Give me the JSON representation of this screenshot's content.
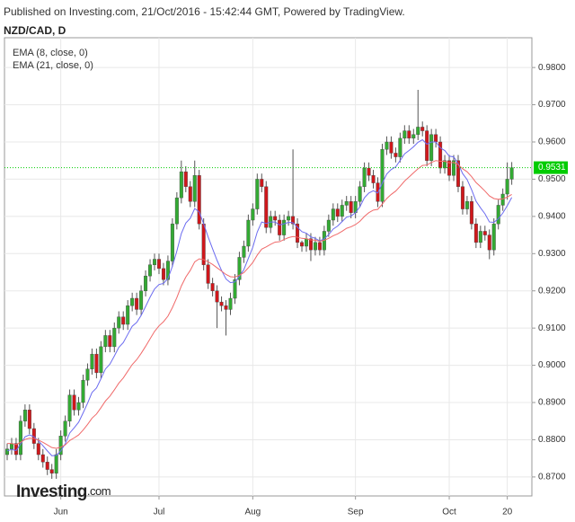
{
  "header": {
    "published": "Published on Investing.com, 21/Oct/2016 - 15:42:44 GMT, Powered by TradingView.",
    "logo": "Investing",
    "logo_suffix": ".com"
  },
  "chart_data": {
    "type": "candlestick",
    "title": "NZD/CAD, D",
    "categories": [
      null,
      null,
      null,
      null,
      null,
      null,
      null,
      null,
      null,
      null,
      null,
      null,
      "Jun",
      null,
      null,
      null,
      null,
      null,
      null,
      null,
      null,
      null,
      null,
      null,
      null,
      null,
      null,
      null,
      null,
      null,
      null,
      null,
      null,
      null,
      "Jul",
      null,
      null,
      null,
      null,
      null,
      null,
      null,
      null,
      null,
      null,
      null,
      null,
      null,
      null,
      null,
      null,
      null,
      null,
      null,
      null,
      "Aug",
      null,
      null,
      null,
      null,
      null,
      null,
      null,
      null,
      null,
      null,
      null,
      null,
      null,
      null,
      null,
      null,
      null,
      null,
      null,
      null,
      null,
      null,
      "Sep",
      null,
      null,
      null,
      null,
      null,
      null,
      null,
      null,
      null,
      null,
      null,
      null,
      null,
      null,
      null,
      null,
      null,
      null,
      null,
      null,
      "Oct",
      null,
      null,
      null,
      null,
      null,
      null,
      null,
      null,
      null,
      null,
      null,
      null,
      "20",
      null
    ],
    "ohlc": {
      "up_color": "#33aa33",
      "down_color": "#d0171b",
      "open": [
        0.876,
        0.8775,
        0.879,
        0.876,
        0.885,
        0.888,
        0.883,
        0.879,
        0.876,
        0.874,
        0.872,
        0.871,
        0.876,
        0.881,
        0.885,
        0.892,
        0.888,
        0.89,
        0.896,
        0.899,
        0.903,
        0.898,
        0.905,
        0.908,
        0.905,
        0.91,
        0.913,
        0.911,
        0.916,
        0.918,
        0.915,
        0.92,
        0.924,
        0.927,
        0.9285,
        0.926,
        0.923,
        0.928,
        0.938,
        0.945,
        0.952,
        0.948,
        0.944,
        0.951,
        0.938,
        0.927,
        0.922,
        0.92,
        0.917,
        0.916,
        0.915,
        0.918,
        0.923,
        0.929,
        0.932,
        0.939,
        0.942,
        0.95,
        0.948,
        0.937,
        0.94,
        0.939,
        0.935,
        0.939,
        0.94,
        0.938,
        0.933,
        0.932,
        0.934,
        0.931,
        0.933,
        0.931,
        0.936,
        0.939,
        0.942,
        0.94,
        0.943,
        0.944,
        0.941,
        0.944,
        0.948,
        0.953,
        0.951,
        0.949,
        0.944,
        0.958,
        0.96,
        0.957,
        0.956,
        0.961,
        0.963,
        0.961,
        0.962,
        0.964,
        0.963,
        0.955,
        0.962,
        0.96,
        0.953,
        0.955,
        0.951,
        0.955,
        0.948,
        0.942,
        0.944,
        0.938,
        0.933,
        0.936,
        0.935,
        0.931,
        0.938,
        0.943,
        0.946,
        0.95
      ],
      "high": [
        0.879,
        0.8805,
        0.8805,
        0.8865,
        0.8895,
        0.8895,
        0.8845,
        0.8805,
        0.8775,
        0.8755,
        0.8735,
        0.8775,
        0.8825,
        0.8865,
        0.8935,
        0.8935,
        0.8915,
        0.8975,
        0.9005,
        0.9045,
        0.9045,
        0.9065,
        0.9095,
        0.9095,
        0.9115,
        0.9145,
        0.9145,
        0.9175,
        0.9195,
        0.9195,
        0.9215,
        0.9255,
        0.9285,
        0.93,
        0.93,
        0.9275,
        0.9295,
        0.9395,
        0.9465,
        0.955,
        0.9535,
        0.9495,
        0.955,
        0.9525,
        0.9395,
        0.9285,
        0.9235,
        0.9215,
        0.9185,
        0.9175,
        0.9195,
        0.9245,
        0.9305,
        0.9335,
        0.9405,
        0.9435,
        0.9515,
        0.9515,
        0.9495,
        0.9415,
        0.9415,
        0.9405,
        0.9405,
        0.9415,
        0.958,
        0.9395,
        0.9335,
        0.9355,
        0.9355,
        0.9345,
        0.9345,
        0.9375,
        0.9405,
        0.9435,
        0.9435,
        0.9445,
        0.9455,
        0.9455,
        0.9455,
        0.9495,
        0.9545,
        0.9545,
        0.9525,
        0.9505,
        0.9595,
        0.9615,
        0.9615,
        0.9585,
        0.9625,
        0.9645,
        0.9645,
        0.9635,
        0.974,
        0.9655,
        0.9645,
        0.9635,
        0.9635,
        0.9615,
        0.9565,
        0.9565,
        0.9565,
        0.9565,
        0.9495,
        0.9455,
        0.9455,
        0.9395,
        0.9375,
        0.9375,
        0.9365,
        0.9395,
        0.9445,
        0.9475,
        0.9545,
        0.9546
      ],
      "low": [
        0.8745,
        0.876,
        0.8745,
        0.8745,
        0.8835,
        0.8815,
        0.8775,
        0.8745,
        0.8725,
        0.8705,
        0.8695,
        0.8695,
        0.8745,
        0.8795,
        0.8835,
        0.8865,
        0.8865,
        0.8885,
        0.8945,
        0.8975,
        0.8965,
        0.8965,
        0.9035,
        0.9035,
        0.9035,
        0.9085,
        0.9095,
        0.9095,
        0.9145,
        0.9135,
        0.9135,
        0.9185,
        0.9225,
        0.9255,
        0.9245,
        0.9215,
        0.9215,
        0.9265,
        0.9365,
        0.9435,
        0.9465,
        0.9425,
        0.9425,
        0.9365,
        0.9255,
        0.9205,
        0.9185,
        0.91,
        0.9145,
        0.908,
        0.9135,
        0.9165,
        0.9215,
        0.9275,
        0.9305,
        0.9375,
        0.9405,
        0.9465,
        0.9355,
        0.9355,
        0.9375,
        0.9335,
        0.9335,
        0.9375,
        0.9365,
        0.9315,
        0.9305,
        0.9305,
        0.928,
        0.9295,
        0.9295,
        0.9295,
        0.9345,
        0.9375,
        0.9385,
        0.9385,
        0.9415,
        0.9395,
        0.9395,
        0.9425,
        0.9465,
        0.9495,
        0.9475,
        0.9425,
        0.9425,
        0.9565,
        0.9555,
        0.9545,
        0.9545,
        0.9595,
        0.9595,
        0.9595,
        0.9605,
        0.9615,
        0.9535,
        0.9535,
        0.9585,
        0.9515,
        0.9515,
        0.9495,
        0.9495,
        0.9465,
        0.9405,
        0.9405,
        0.9365,
        0.9315,
        0.9315,
        0.9335,
        0.9285,
        0.9295,
        0.9365,
        0.9415,
        0.9445,
        0.9485
      ],
      "close": [
        0.8775,
        0.879,
        0.876,
        0.885,
        0.888,
        0.883,
        0.879,
        0.876,
        0.874,
        0.872,
        0.871,
        0.876,
        0.881,
        0.885,
        0.892,
        0.888,
        0.89,
        0.896,
        0.899,
        0.903,
        0.898,
        0.905,
        0.908,
        0.905,
        0.91,
        0.913,
        0.911,
        0.916,
        0.918,
        0.915,
        0.92,
        0.924,
        0.927,
        0.9285,
        0.926,
        0.923,
        0.928,
        0.938,
        0.945,
        0.952,
        0.948,
        0.944,
        0.951,
        0.938,
        0.927,
        0.922,
        0.92,
        0.917,
        0.916,
        0.915,
        0.918,
        0.923,
        0.929,
        0.932,
        0.939,
        0.942,
        0.95,
        0.948,
        0.937,
        0.94,
        0.939,
        0.935,
        0.939,
        0.94,
        0.938,
        0.933,
        0.932,
        0.934,
        0.931,
        0.933,
        0.931,
        0.936,
        0.939,
        0.942,
        0.94,
        0.943,
        0.944,
        0.941,
        0.944,
        0.948,
        0.953,
        0.951,
        0.949,
        0.944,
        0.958,
        0.96,
        0.957,
        0.956,
        0.961,
        0.963,
        0.961,
        0.962,
        0.964,
        0.963,
        0.955,
        0.962,
        0.96,
        0.953,
        0.955,
        0.951,
        0.955,
        0.948,
        0.942,
        0.944,
        0.938,
        0.933,
        0.936,
        0.935,
        0.931,
        0.938,
        0.943,
        0.946,
        0.95,
        0.9531
      ]
    },
    "series": [
      {
        "name": "EMA (8, close, 0)",
        "color": "#6b6bf0",
        "values": [
          0.877,
          0.8774,
          0.8771,
          0.8788,
          0.8808,
          0.8813,
          0.8808,
          0.8797,
          0.8784,
          0.877,
          0.8757,
          0.8758,
          0.877,
          0.8789,
          0.8818,
          0.8832,
          0.8847,
          0.8872,
          0.8898,
          0.8927,
          0.8939,
          0.8964,
          0.899,
          0.9003,
          0.9025,
          0.9048,
          0.9061,
          0.9083,
          0.9105,
          0.9115,
          0.9134,
          0.9158,
          0.9183,
          0.9205,
          0.9217,
          0.922,
          0.9233,
          0.9266,
          0.9307,
          0.9354,
          0.9382,
          0.9395,
          0.9421,
          0.9412,
          0.938,
          0.9345,
          0.9313,
          0.9282,
          0.9255,
          0.9232,
          0.9222,
          0.9224,
          0.9239,
          0.9257,
          0.9287,
          0.9317,
          0.9358,
          0.9385,
          0.9381,
          0.9385,
          0.9385,
          0.9377,
          0.938,
          0.9384,
          0.9383,
          0.9371,
          0.9359,
          0.9355,
          0.9345,
          0.9341,
          0.9334,
          0.934,
          0.9351,
          0.9366,
          0.9374,
          0.9386,
          0.9398,
          0.9401,
          0.941,
          0.9426,
          0.945,
          0.9463,
          0.9469,
          0.9463,
          0.9489,
          0.9514,
          0.9526,
          0.9533,
          0.955,
          0.9568,
          0.9577,
          0.9587,
          0.9599,
          0.9606,
          0.9594,
          0.96,
          0.96,
          0.9584,
          0.9577,
          0.9562,
          0.956,
          0.9542,
          0.9515,
          0.9499,
          0.9472,
          0.9441,
          0.9423,
          0.9407,
          0.9385,
          0.9384,
          0.9394,
          0.9409,
          0.9429,
          0.9451
        ]
      },
      {
        "name": "EMA (21, close, 0)",
        "color": "#f06a6a",
        "values": [
          0.879,
          0.879,
          0.8787,
          0.8793,
          0.8801,
          0.8804,
          0.8803,
          0.8799,
          0.8793,
          0.8786,
          0.8779,
          0.8777,
          0.878,
          0.8786,
          0.8798,
          0.8805,
          0.8813,
          0.8826,
          0.8841,
          0.8858,
          0.8869,
          0.8886,
          0.8904,
          0.8917,
          0.8934,
          0.8952,
          0.8966,
          0.8984,
          0.9002,
          0.9015,
          0.9032,
          0.9051,
          0.9071,
          0.9091,
          0.9106,
          0.9117,
          0.9132,
          0.9155,
          0.9182,
          0.9213,
          0.9237,
          0.9255,
          0.9278,
          0.9286,
          0.9284,
          0.9278,
          0.9271,
          0.9262,
          0.9253,
          0.9244,
          0.9238,
          0.9237,
          0.9242,
          0.9249,
          0.9262,
          0.9276,
          0.9296,
          0.9312,
          0.9318,
          0.9325,
          0.9331,
          0.9332,
          0.9338,
          0.9343,
          0.9346,
          0.9344,
          0.9341,
          0.934,
          0.9337,
          0.9336,
          0.9333,
          0.9336,
          0.9341,
          0.9348,
          0.9353,
          0.936,
          0.9368,
          0.9372,
          0.9378,
          0.9387,
          0.94,
          0.941,
          0.9417,
          0.9419,
          0.9433,
          0.9448,
          0.9459,
          0.9468,
          0.9481,
          0.9495,
          0.9506,
          0.9517,
          0.9528,
          0.9537,
          0.9538,
          0.9545,
          0.955,
          0.9548,
          0.9548,
          0.9544,
          0.9545,
          0.9539,
          0.9528,
          0.952,
          0.9507,
          0.9491,
          0.948,
          0.9468,
          0.9455,
          0.9448,
          0.9446,
          0.9447,
          0.9452,
          0.9459
        ]
      }
    ],
    "last_price": {
      "value": 0.9531,
      "label": "0.9531",
      "color": "#00cc00"
    },
    "ylim": [
      0.8649,
      0.988
    ],
    "yticks": [
      {
        "value": 0.87,
        "label": "0.8700"
      },
      {
        "value": 0.88,
        "label": "0.8800"
      },
      {
        "value": 0.89,
        "label": "0.8900"
      },
      {
        "value": 0.9,
        "label": "0.9000"
      },
      {
        "value": 0.91,
        "label": "0.9100"
      },
      {
        "value": 0.92,
        "label": "0.9200"
      },
      {
        "value": 0.93,
        "label": "0.9300"
      },
      {
        "value": 0.94,
        "label": "0.9400"
      },
      {
        "value": 0.95,
        "label": "0.9500"
      },
      {
        "value": 0.96,
        "label": "0.9600"
      },
      {
        "value": 0.97,
        "label": "0.9700"
      },
      {
        "value": 0.98,
        "label": "0.9800"
      }
    ],
    "grid": true
  }
}
